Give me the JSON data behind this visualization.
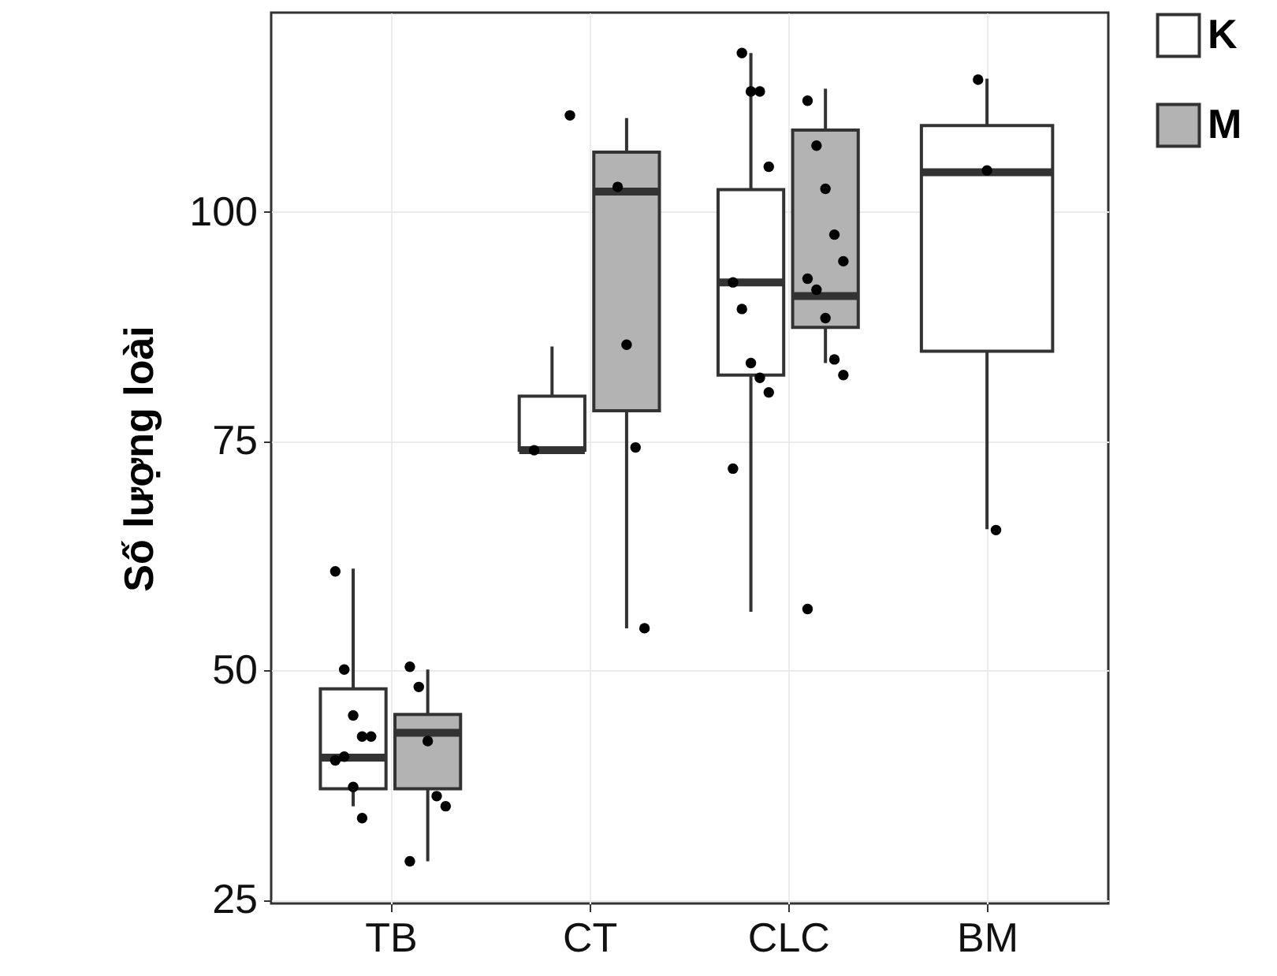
{
  "chart_data": {
    "type": "box",
    "ylabel": "Số lượng loài",
    "categories": [
      "TB",
      "CT",
      "CLC",
      "BM"
    ],
    "ylim": [
      24.6,
      121.7
    ],
    "yticks": [
      25,
      50,
      75,
      100
    ],
    "grid": true,
    "legend": "right",
    "series": [
      {
        "name": "K",
        "color": "#ffffff",
        "boxes": [
          {
            "low": 35.2,
            "q1": 37.1,
            "median": 40.5,
            "q3": 48.0,
            "high": 61.1
          },
          {
            "low": 74.0,
            "q1": 74.0,
            "median": 74.0,
            "q3": 79.9,
            "high": 85.3
          },
          {
            "low": 56.4,
            "q1": 82.2,
            "median": 92.3,
            "q3": 102.4,
            "high": 117.3
          },
          {
            "low": 65.4,
            "q1": 84.8,
            "median": 104.3,
            "q3": 109.4,
            "high": 114.5
          }
        ]
      },
      {
        "name": "M",
        "color": "#b3b3b3",
        "boxes": [
          {
            "low": 29.2,
            "q1": 37.1,
            "median": 43.2,
            "q3": 45.2,
            "high": 50.1
          },
          {
            "low": 54.6,
            "q1": 78.3,
            "median": 102.2,
            "q3": 106.5,
            "high": 110.2
          },
          {
            "low": 83.5,
            "q1": 87.4,
            "median": 90.8,
            "q3": 108.9,
            "high": 113.4
          },
          null
        ]
      },
      {
        "type": "scatter",
        "marker": "circle",
        "color": "#000000",
        "x": [
          "TB",
          "TB",
          "TB",
          "TB",
          "TB",
          "TB",
          "TB",
          "TB",
          "TB",
          "CT",
          "CT",
          "CLC",
          "CLC",
          "CLC",
          "CLC",
          "CLC",
          "CLC",
          "CLC",
          "CLC",
          "CLC",
          "CLC",
          "BM",
          "BM",
          "BM"
        ],
        "values": [
          60.8,
          50.1,
          45.1,
          42.8,
          42.8,
          40.2,
          40.6,
          37.3,
          33.9,
          110.5,
          74.0,
          117.3,
          113.1,
          113.1,
          104.9,
          92.3,
          89.4,
          83.5,
          81.9,
          80.3,
          72.0,
          114.4,
          104.5,
          65.3
        ]
      },
      {
        "type": "scatter",
        "marker": "circle",
        "color": "#000000",
        "x": [
          "TB",
          "TB",
          "TB",
          "TB",
          "TB",
          "TB",
          "CT",
          "CT",
          "CT",
          "CT",
          "CLC",
          "CLC",
          "CLC",
          "CLC",
          "CLC",
          "CLC",
          "CLC",
          "CLC",
          "CLC",
          "CLC",
          "CLC"
        ],
        "values": [
          50.4,
          48.2,
          42.3,
          36.3,
          35.2,
          29.2,
          102.7,
          85.5,
          74.3,
          54.6,
          112.1,
          107.2,
          102.5,
          97.5,
          94.6,
          92.7,
          91.5,
          88.4,
          83.9,
          82.2,
          56.7
        ]
      }
    ]
  }
}
